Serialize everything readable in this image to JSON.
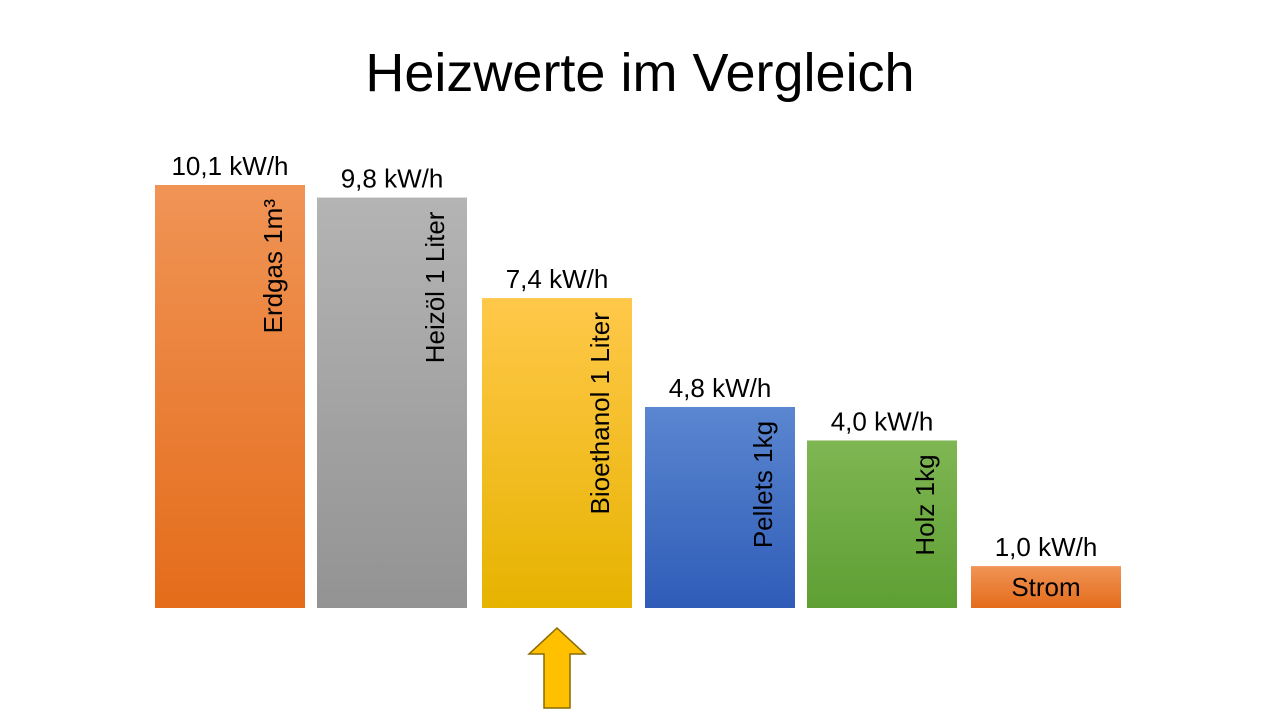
{
  "title": "Heizwerte im Vergleich",
  "chart_data": {
    "type": "bar",
    "title": "Heizwerte im Vergleich",
    "categories": [
      "Erdgas 1m³",
      "Heizöl 1 Liter",
      "Bioethanol 1 Liter",
      "Pellets 1kg",
      "Holz 1kg",
      "Strom"
    ],
    "values": [
      10.1,
      9.8,
      7.4,
      4.8,
      4.0,
      1.0
    ],
    "value_labels": [
      "10,1 kW/h",
      "9,8 kW/h",
      "7,4 kW/h",
      "4,8 kW/h",
      "4,0 kW/h",
      "1,0 kW/h"
    ],
    "unit": "kW/h",
    "label_orientation": [
      "vertical",
      "vertical",
      "vertical",
      "vertical",
      "vertical",
      "horizontal"
    ],
    "colors": [
      {
        "top": "#f09456",
        "bottom": "#e46c1a"
      },
      {
        "top": "#b4b4b4",
        "bottom": "#939393"
      },
      {
        "top": "#ffc84a",
        "bottom": "#e6b300"
      },
      {
        "top": "#5b86d0",
        "bottom": "#2f5cb8"
      },
      {
        "top": "#7fb653",
        "bottom": "#5e9f33"
      },
      {
        "top": "#f09456",
        "bottom": "#e46c1a"
      }
    ],
    "xlabel": "",
    "ylabel": "",
    "ylim": [
      0,
      10.1
    ],
    "grid": false,
    "legend": "none",
    "annotation": {
      "type": "arrow-up",
      "target_category": "Bioethanol 1 Liter",
      "color": "#ffc000"
    }
  }
}
